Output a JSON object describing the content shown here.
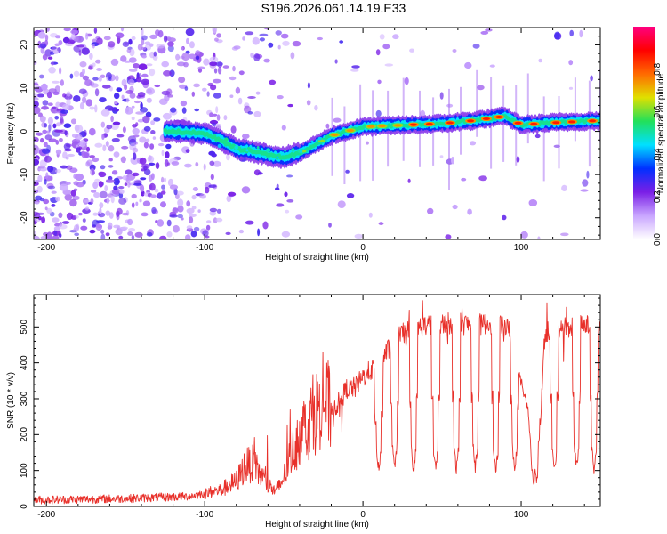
{
  "chart_data": [
    {
      "type": "heatmap",
      "title": "S196.2026.061.14.19.E33",
      "xlabel": "Height of straight line (km)",
      "ylabel": "Frequency (Hz)",
      "xlim": [
        -208,
        150
      ],
      "ylim": [
        -25,
        24
      ],
      "xticks": [
        -200,
        -100,
        0,
        100
      ],
      "xtick_labels": [
        "-200",
        "-100",
        "0",
        "100"
      ],
      "yticks": [
        20,
        10,
        0,
        -10,
        -20
      ],
      "ytick_labels": [
        "20",
        "10",
        "0",
        "-10",
        "-20"
      ],
      "colorbar": {
        "label": "Normalized spectral amplitude",
        "range": [
          0,
          1
        ],
        "ticks": [
          0.0,
          0.2,
          0.4,
          0.6,
          0.8
        ],
        "tick_labels": [
          "0.0",
          "0.2",
          "0.4",
          "0.6",
          "0.8"
        ],
        "colors": [
          "#ffffff",
          "#c9a6ff",
          "#7a1fe6",
          "#0030ff",
          "#00e0ff",
          "#22e05a",
          "#e0e000",
          "#ff6a00",
          "#ff0000",
          "#ff0080"
        ]
      },
      "ridge": {
        "description": "dominant spectral line (frequency vs height)",
        "x": [
          -120,
          -100,
          -90,
          -80,
          -70,
          -60,
          -50,
          -40,
          -30,
          -20,
          -10,
          0,
          10,
          30,
          50,
          70,
          80,
          90,
          100,
          120,
          150
        ],
        "y": [
          0,
          -0.5,
          -2,
          -4,
          -4.5,
          -5.5,
          -6,
          -5,
          -3,
          -1,
          0,
          1,
          1.2,
          1.5,
          1.8,
          2.5,
          3,
          3.5,
          1.5,
          2,
          2.5
        ]
      }
    },
    {
      "type": "line",
      "title": "",
      "xlabel": "Height of straight line (km)",
      "ylabel": "SNR (10 * v/v)",
      "xlim": [
        -208,
        150
      ],
      "ylim": [
        0,
        590
      ],
      "xticks": [
        -200,
        -100,
        0,
        100
      ],
      "xtick_labels": [
        "-200",
        "-100",
        "0",
        "100"
      ],
      "yticks": [
        0,
        100,
        200,
        300,
        400,
        500
      ],
      "ytick_labels": [
        "0",
        "100",
        "200",
        "300",
        "400",
        "500"
      ],
      "color": "#e8302a",
      "series": [
        {
          "name": "SNR envelope",
          "x": [
            -208,
            -150,
            -110,
            -90,
            -80,
            -75,
            -70,
            -65,
            -60,
            -55,
            -50,
            -45,
            -40,
            -35,
            -30,
            -25,
            -20,
            -15,
            -10,
            -5,
            0,
            5,
            10,
            15,
            20,
            25,
            30,
            35,
            40,
            50,
            60,
            70,
            80,
            90,
            95,
            100,
            105,
            110,
            115,
            120,
            130,
            140,
            150
          ],
          "y": [
            18,
            22,
            28,
            45,
            70,
            110,
            120,
            90,
            60,
            40,
            80,
            150,
            200,
            230,
            260,
            300,
            270,
            290,
            330,
            330,
            360,
            380,
            390,
            430,
            460,
            480,
            490,
            500,
            505,
            510,
            510,
            505,
            510,
            505,
            470,
            420,
            350,
            80,
            480,
            500,
            500,
            505,
            500
          ]
        }
      ],
      "dips": {
        "description": "periodic sharp drops of the SNR trace",
        "x": [
          10,
          20,
          32,
          46,
          59,
          71,
          84,
          96,
          108,
          121,
          135,
          146
        ],
        "y": [
          100,
          110,
          100,
          100,
          105,
          110,
          100,
          105,
          60,
          100,
          110,
          105
        ]
      }
    }
  ]
}
